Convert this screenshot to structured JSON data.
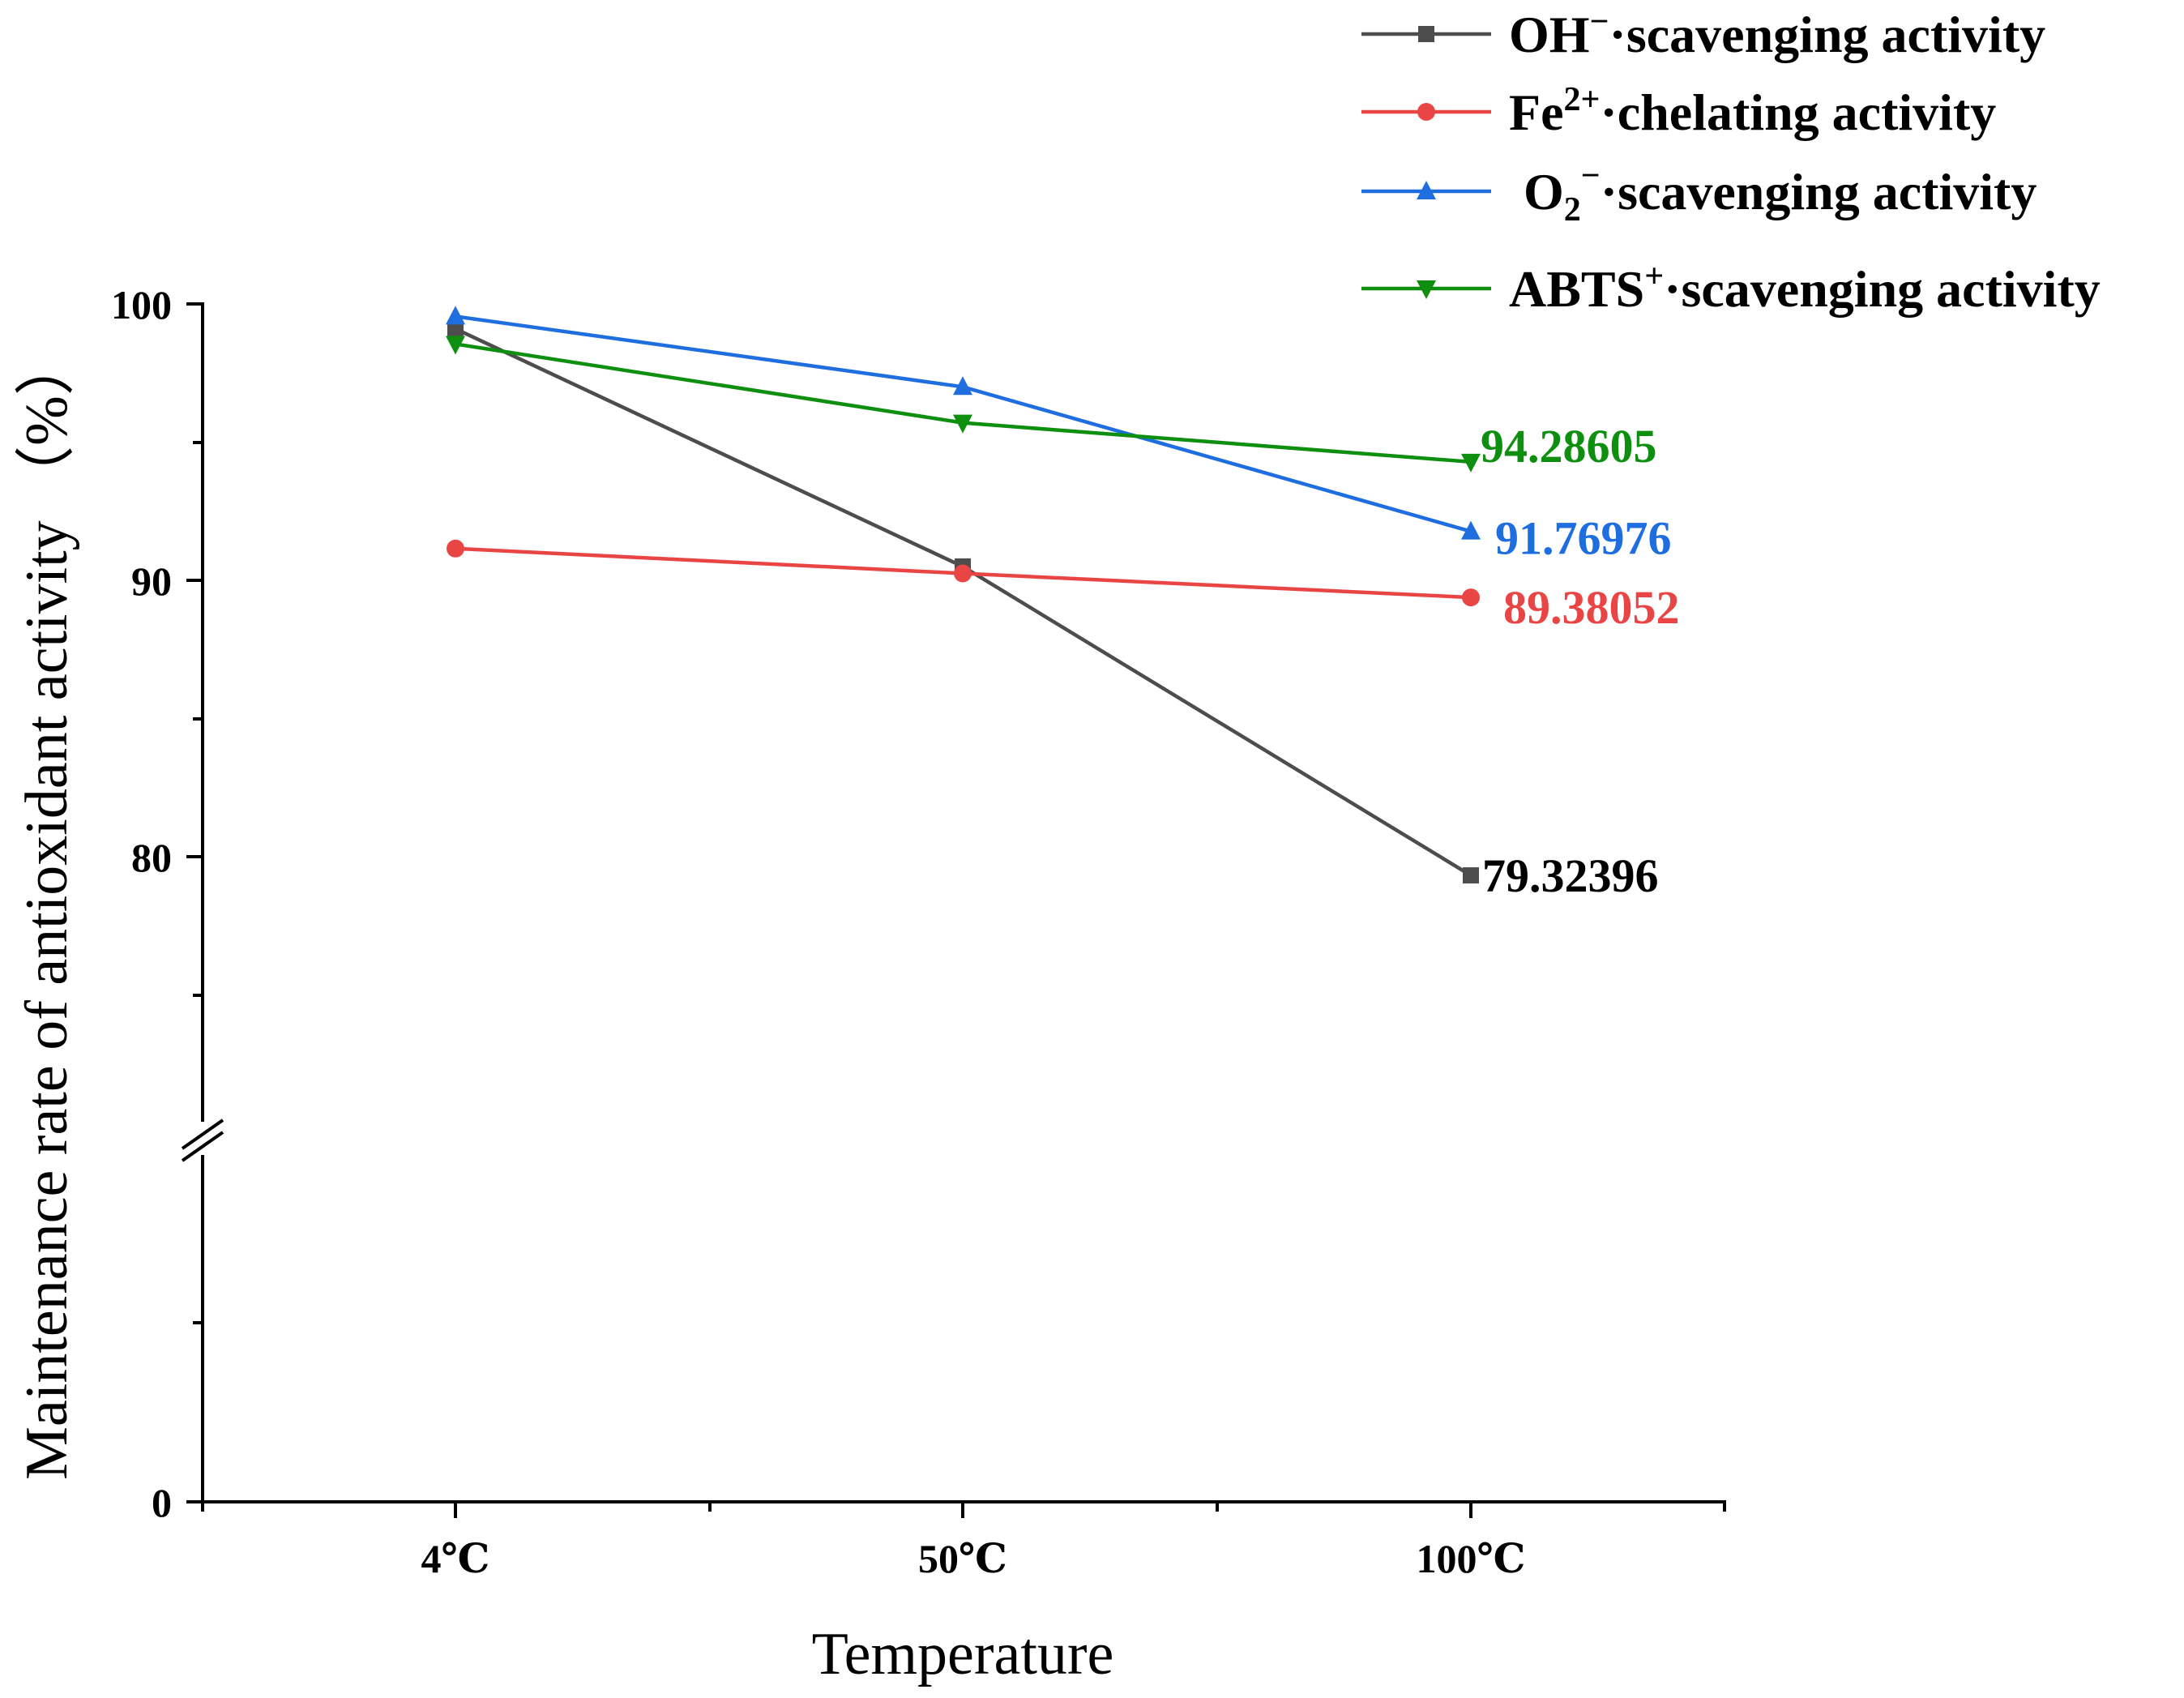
{
  "chart_data": {
    "type": "line",
    "title": "",
    "xlabel": "Temperature",
    "ylabel": "Maintenance rate of antioxidant activity （%）",
    "categories": [
      "4℃",
      "50℃",
      "100℃"
    ],
    "y_axis": {
      "lower_segment": [
        0,
        0
      ],
      "upper_segment": [
        70,
        100
      ],
      "break_marker": "//",
      "tick_labels": [
        "0",
        "80",
        "90",
        "100"
      ]
    },
    "grid": false,
    "legend_position": "top-right",
    "series": [
      {
        "name": "OH⁻·scavenging activity",
        "legend_parts": {
          "base": "OH",
          "sub": "",
          "sup": "−",
          "rest": "·scavenging activity"
        },
        "color": "#4d4d4d",
        "marker": "square",
        "values": [
          99.1,
          90.5,
          79.32396
        ],
        "end_label": "79.32396",
        "end_label_color": "#000000"
      },
      {
        "name": "Fe²⁺·chelating activity",
        "legend_parts": {
          "base": "Fe",
          "sub": "",
          "sup": "2+",
          "rest": "·chelating activity"
        },
        "color": "#ea4545",
        "marker": "circle",
        "values": [
          91.15,
          90.25,
          89.38052
        ],
        "end_label": "89.38052",
        "end_label_color": "#ea4545"
      },
      {
        "name": "O₂⁻·scavenging activity",
        "legend_parts": {
          "base": "O",
          "sub": "2",
          "sup": "−",
          "rest": "·scavenging activity"
        },
        "color": "#1f6ee0",
        "marker": "triangle-up",
        "values": [
          99.55,
          97.0,
          91.76976
        ],
        "end_label": "91.76976",
        "end_label_color": "#1f6ee0"
      },
      {
        "name": "ABTS⁺·scavenging activity",
        "legend_parts": {
          "base": "ABTS",
          "sub": "",
          "sup": "+",
          "rest": "·scavenging activity"
        },
        "color": "#0f8f0f",
        "marker": "triangle-down",
        "values": [
          98.55,
          95.7,
          94.28605
        ],
        "end_label": "94.28605",
        "end_label_color": "#0f8f0f"
      }
    ]
  }
}
